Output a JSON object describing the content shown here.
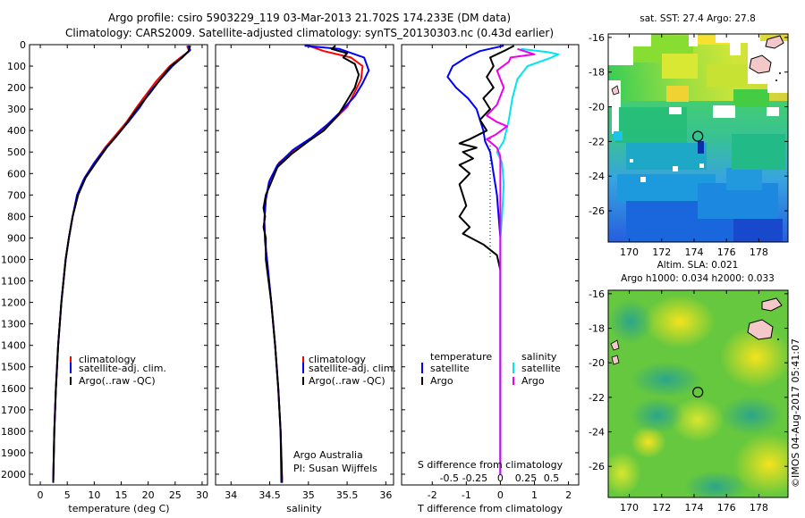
{
  "header": {
    "line1": "Argo profile: csiro 5903229_119 03-Mar-2013 21.702S 174.233E (DM data)",
    "line2": "Climatology: CARS2009. Satellite-adjusted climatology: synTS_20130303.nc (0.43d earlier)"
  },
  "stamp": "©IMOS 04-Aug-2017 05:41:07",
  "colors": {
    "climatology": "#ff0000",
    "satellite": "#0000ff",
    "argo": "#000000",
    "sal_satellite": "#00e5ee",
    "sal_argo": "#ee00ee"
  },
  "depth_axis": {
    "min": 0,
    "max": 2050,
    "ticks": [
      0,
      100,
      200,
      300,
      400,
      500,
      600,
      700,
      800,
      900,
      1000,
      1100,
      1200,
      1300,
      1400,
      1500,
      1600,
      1700,
      1800,
      1900,
      2000
    ]
  },
  "chart_data": [
    {
      "id": "temperature",
      "type": "line",
      "xlabel": "temperature (deg C)",
      "xlim": [
        -2,
        31
      ],
      "xticks": [
        0,
        5,
        10,
        15,
        20,
        25,
        30
      ],
      "legend": [
        "climatology",
        "satellite-adj. clim.",
        "Argo(..raw -QC)"
      ],
      "series": [
        {
          "name": "climatology",
          "color": "#ff0000",
          "points": [
            [
              27.2,
              5
            ],
            [
              27.6,
              30
            ],
            [
              26,
              60
            ],
            [
              24,
              100
            ],
            [
              21.5,
              170
            ],
            [
              20,
              220
            ],
            [
              18.2,
              280
            ],
            [
              16,
              360
            ],
            [
              14,
              420
            ],
            [
              12,
              480
            ],
            [
              10,
              550
            ],
            [
              8.2,
              620
            ],
            [
              7,
              700
            ],
            [
              6,
              800
            ],
            [
              5.3,
              900
            ],
            [
              4.7,
              1000
            ],
            [
              3.9,
              1200
            ],
            [
              3.3,
              1400
            ],
            [
              2.9,
              1600
            ],
            [
              2.6,
              1800
            ],
            [
              2.4,
              2030
            ]
          ]
        },
        {
          "name": "satellite",
          "color": "#0000ff",
          "points": [
            [
              27.4,
              5
            ],
            [
              27.8,
              25
            ],
            [
              26.5,
              55
            ],
            [
              24.5,
              100
            ],
            [
              22,
              170
            ],
            [
              20.3,
              220
            ],
            [
              18.5,
              290
            ],
            [
              16.3,
              360
            ],
            [
              14.3,
              420
            ],
            [
              12.2,
              480
            ],
            [
              10,
              550
            ],
            [
              8,
              630
            ],
            [
              6.8,
              700
            ],
            [
              6,
              800
            ],
            [
              5.3,
              900
            ],
            [
              4.7,
              1000
            ],
            [
              3.9,
              1200
            ],
            [
              3.3,
              1400
            ],
            [
              2.9,
              1600
            ],
            [
              2.6,
              1800
            ],
            [
              2.4,
              2030
            ]
          ]
        },
        {
          "name": "argo",
          "color": "#000000",
          "points": [
            [
              27.8,
              5
            ],
            [
              27.5,
              30
            ],
            [
              26.3,
              60
            ],
            [
              24.2,
              100
            ],
            [
              22,
              170
            ],
            [
              20.2,
              230
            ],
            [
              17.9,
              300
            ],
            [
              15.6,
              380
            ],
            [
              14,
              430
            ],
            [
              12.3,
              480
            ],
            [
              10.3,
              550
            ],
            [
              8.4,
              620
            ],
            [
              7,
              700
            ],
            [
              6,
              800
            ],
            [
              5.3,
              900
            ],
            [
              4.7,
              1000
            ],
            [
              3.9,
              1200
            ],
            [
              3.3,
              1400
            ],
            [
              2.9,
              1600
            ],
            [
              2.6,
              1800
            ],
            [
              2.4,
              2040
            ]
          ]
        }
      ]
    },
    {
      "id": "salinity",
      "type": "line",
      "xlabel": "salinity",
      "xlim": [
        33.8,
        36.1
      ],
      "xticks": [
        34,
        34.5,
        35,
        35.5,
        36
      ],
      "legend": [
        "climatology",
        "satellite-adj. clim.",
        "Argo(..raw -QC)"
      ],
      "annotation": [
        "Argo Australia",
        "PI: Susan Wijffels"
      ],
      "series": [
        {
          "name": "climatology",
          "color": "#ff0000",
          "points": [
            [
              35,
              5
            ],
            [
              35.2,
              30
            ],
            [
              35.55,
              60
            ],
            [
              35.7,
              100
            ],
            [
              35.68,
              160
            ],
            [
              35.6,
              220
            ],
            [
              35.5,
              290
            ],
            [
              35.3,
              360
            ],
            [
              35.1,
              420
            ],
            [
              34.85,
              480
            ],
            [
              34.62,
              550
            ],
            [
              34.5,
              630
            ],
            [
              34.45,
              720
            ],
            [
              34.43,
              820
            ],
            [
              34.44,
              920
            ],
            [
              34.47,
              1020
            ],
            [
              34.52,
              1200
            ],
            [
              34.57,
              1400
            ],
            [
              34.61,
              1600
            ],
            [
              34.64,
              1800
            ],
            [
              34.66,
              2030
            ]
          ]
        },
        {
          "name": "satellite",
          "color": "#0000ff",
          "points": [
            [
              34.95,
              5
            ],
            [
              35.4,
              20
            ],
            [
              35.72,
              60
            ],
            [
              35.78,
              120
            ],
            [
              35.7,
              180
            ],
            [
              35.6,
              240
            ],
            [
              35.45,
              300
            ],
            [
              35.25,
              370
            ],
            [
              35.05,
              430
            ],
            [
              34.8,
              490
            ],
            [
              34.6,
              560
            ],
            [
              34.49,
              640
            ],
            [
              34.45,
              720
            ],
            [
              34.43,
              820
            ],
            [
              34.44,
              920
            ],
            [
              34.47,
              1020
            ],
            [
              34.52,
              1200
            ],
            [
              34.57,
              1400
            ],
            [
              34.61,
              1600
            ],
            [
              34.64,
              1800
            ],
            [
              34.65,
              2040
            ]
          ]
        },
        {
          "name": "argo",
          "color": "#000000",
          "points": [
            [
              35.35,
              5
            ],
            [
              35.3,
              20
            ],
            [
              35.5,
              40
            ],
            [
              35.45,
              60
            ],
            [
              35.6,
              90
            ],
            [
              35.65,
              140
            ],
            [
              35.6,
              200
            ],
            [
              35.5,
              260
            ],
            [
              35.38,
              330
            ],
            [
              35.2,
              400
            ],
            [
              35,
              450
            ],
            [
              34.78,
              510
            ],
            [
              34.6,
              570
            ],
            [
              34.52,
              640
            ],
            [
              34.45,
              700
            ],
            [
              34.42,
              760
            ],
            [
              34.44,
              800
            ],
            [
              34.42,
              850
            ],
            [
              34.45,
              900
            ],
            [
              34.45,
              1000
            ],
            [
              34.52,
              1200
            ],
            [
              34.57,
              1400
            ],
            [
              34.61,
              1600
            ],
            [
              34.64,
              1800
            ],
            [
              34.66,
              2040
            ]
          ]
        }
      ]
    },
    {
      "id": "difference",
      "type": "line",
      "xlabel": "T difference from climatology",
      "xlabel_top": "S difference from climatology",
      "xlim": [
        -2.9,
        2.3
      ],
      "xticks": [
        -2,
        -1,
        0,
        1,
        2
      ],
      "xticks_top": [
        {
          "v": -1.5,
          "label": "-0.5"
        },
        {
          "v": -0.75,
          "label": "-0.25"
        },
        {
          "v": 0,
          "label": "0"
        },
        {
          "v": 0.75,
          "label": "0.25"
        },
        {
          "v": 1.5,
          "label": "0.5"
        }
      ],
      "legend": {
        "temperature": "temperature",
        "salinity": "salinity",
        "satellite": "satellite",
        "argo": "Argo"
      },
      "series": [
        {
          "name": "T satellite",
          "color": "#0000ff",
          "points": [
            [
              0.1,
              5
            ],
            [
              -0.6,
              30
            ],
            [
              -1,
              60
            ],
            [
              -1.4,
              100
            ],
            [
              -1.55,
              150
            ],
            [
              -1.3,
              200
            ],
            [
              -0.95,
              250
            ],
            [
              -0.7,
              300
            ],
            [
              -0.6,
              350
            ],
            [
              -0.5,
              400
            ],
            [
              -0.45,
              450
            ],
            [
              -0.3,
              500
            ],
            [
              -0.2,
              600
            ],
            [
              -0.1,
              700
            ],
            [
              -0.05,
              800
            ],
            [
              0,
              900
            ],
            [
              0,
              1200
            ],
            [
              0,
              2000
            ]
          ]
        },
        {
          "name": "T argo",
          "color": "#000000",
          "points": [
            [
              0.4,
              5
            ],
            [
              0.1,
              30
            ],
            [
              -0.3,
              60
            ],
            [
              -0.2,
              100
            ],
            [
              -0.4,
              150
            ],
            [
              -0.2,
              200
            ],
            [
              -0.5,
              250
            ],
            [
              -0.3,
              300
            ],
            [
              -0.6,
              350
            ],
            [
              -0.4,
              400
            ],
            [
              -0.9,
              440
            ],
            [
              -1.2,
              460
            ],
            [
              -0.7,
              480
            ],
            [
              -1.1,
              500
            ],
            [
              -0.8,
              530
            ],
            [
              -1.2,
              560
            ],
            [
              -0.9,
              600
            ],
            [
              -1.2,
              650
            ],
            [
              -1.1,
              700
            ],
            [
              -1,
              750
            ],
            [
              -1.2,
              800
            ],
            [
              -0.9,
              850
            ],
            [
              -1.1,
              880
            ],
            [
              -0.5,
              930
            ],
            [
              -0.1,
              980
            ],
            [
              0,
              1050
            ],
            [
              0,
              2000
            ]
          ]
        },
        {
          "name": "S satellite",
          "color": "#00e5ee",
          "points": [
            [
              0.6,
              20
            ],
            [
              1.4,
              35
            ],
            [
              1.7,
              45
            ],
            [
              1.5,
              60
            ],
            [
              0.8,
              100
            ],
            [
              0.5,
              160
            ],
            [
              0.35,
              250
            ],
            [
              0.25,
              350
            ],
            [
              0.1,
              450
            ],
            [
              -0.1,
              500
            ],
            [
              0.05,
              550
            ],
            [
              0.1,
              650
            ],
            [
              0.05,
              800
            ],
            [
              0,
              900
            ],
            [
              0,
              2000
            ]
          ]
        },
        {
          "name": "S argo",
          "color": "#ee00ee",
          "points": [
            [
              0.5,
              20
            ],
            [
              1,
              45
            ],
            [
              0.3,
              60
            ],
            [
              0.25,
              80
            ],
            [
              -0.1,
              120
            ],
            [
              0.1,
              200
            ],
            [
              -0.1,
              280
            ],
            [
              -0.4,
              330
            ],
            [
              -0.1,
              360
            ],
            [
              0.2,
              380
            ],
            [
              -0.15,
              420
            ],
            [
              -0.4,
              440
            ],
            [
              -0.1,
              480
            ],
            [
              0,
              520
            ],
            [
              0,
              2000
            ]
          ]
        }
      ]
    }
  ],
  "maps": [
    {
      "id": "sst",
      "title": "sat. SST: 27.4  Argo: 27.8",
      "xticks": [
        170,
        172,
        174,
        176,
        178
      ],
      "yticks": [
        -16,
        -18,
        -20,
        -22,
        -24,
        -26
      ],
      "lon_range": [
        168.7,
        179.8
      ],
      "lat_range": [
        -15.8,
        -27.8
      ],
      "argo_position": [
        174.233,
        -21.702
      ]
    },
    {
      "id": "sla",
      "title_line1": "Altim. SLA: 0.021",
      "title_line2": "Argo h1000: 0.034  h2000: 0.033",
      "xticks": [
        170,
        172,
        174,
        176,
        178
      ],
      "yticks": [
        -16,
        -18,
        -20,
        -22,
        -24,
        -26
      ],
      "lon_range": [
        168.7,
        179.8
      ],
      "lat_range": [
        -15.8,
        -27.8
      ],
      "argo_position": [
        174.233,
        -21.702
      ]
    }
  ]
}
